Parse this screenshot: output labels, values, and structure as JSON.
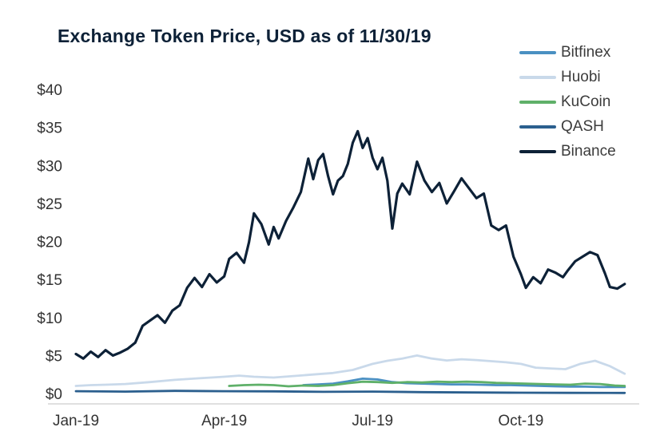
{
  "chart_data": {
    "type": "line",
    "title": "Exchange Token Price, USD as of 11/30/19",
    "xlabel": "",
    "ylabel": "",
    "ylim": [
      0,
      40
    ],
    "x_range": [
      0,
      11.2
    ],
    "grid": false,
    "legend_position": "top-right",
    "y_ticks": [
      {
        "value": 0,
        "label": "$0"
      },
      {
        "value": 5,
        "label": "$5"
      },
      {
        "value": 10,
        "label": "$10"
      },
      {
        "value": 15,
        "label": "$15"
      },
      {
        "value": 20,
        "label": "$20"
      },
      {
        "value": 25,
        "label": "$25"
      },
      {
        "value": 30,
        "label": "$30"
      },
      {
        "value": 35,
        "label": "$35"
      },
      {
        "value": 40,
        "label": "$40"
      }
    ],
    "x_ticks": [
      {
        "value": 0,
        "label": "Jan-19"
      },
      {
        "value": 3,
        "label": "Apr-19"
      },
      {
        "value": 6,
        "label": "Jul-19"
      },
      {
        "value": 9,
        "label": "Oct-19"
      }
    ],
    "series": [
      {
        "name": "Bitfinex",
        "color": "#4a90c2",
        "points": [
          [
            4.6,
            1.1
          ],
          [
            4.9,
            1.2
          ],
          [
            5.2,
            1.3
          ],
          [
            5.5,
            1.6
          ],
          [
            5.8,
            1.95
          ],
          [
            6.1,
            1.85
          ],
          [
            6.4,
            1.5
          ],
          [
            6.7,
            1.35
          ],
          [
            7.0,
            1.3
          ],
          [
            7.3,
            1.25
          ],
          [
            7.6,
            1.2
          ],
          [
            7.9,
            1.2
          ],
          [
            8.2,
            1.15
          ],
          [
            8.5,
            1.1
          ],
          [
            8.8,
            1.1
          ],
          [
            9.1,
            1.05
          ],
          [
            9.4,
            1.0
          ],
          [
            9.7,
            0.95
          ],
          [
            10.0,
            0.9
          ],
          [
            10.3,
            0.9
          ],
          [
            10.6,
            0.85
          ],
          [
            10.9,
            0.85
          ],
          [
            11.1,
            0.85
          ]
        ]
      },
      {
        "name": "Huobi",
        "color": "#c9d9ea",
        "points": [
          [
            0,
            1.0
          ],
          [
            0.3,
            1.1
          ],
          [
            0.6,
            1.15
          ],
          [
            1.0,
            1.25
          ],
          [
            1.5,
            1.5
          ],
          [
            2.0,
            1.8
          ],
          [
            2.5,
            2.0
          ],
          [
            3.0,
            2.2
          ],
          [
            3.3,
            2.35
          ],
          [
            3.6,
            2.2
          ],
          [
            4.0,
            2.1
          ],
          [
            4.4,
            2.3
          ],
          [
            4.8,
            2.5
          ],
          [
            5.2,
            2.7
          ],
          [
            5.6,
            3.1
          ],
          [
            6.0,
            3.9
          ],
          [
            6.3,
            4.3
          ],
          [
            6.6,
            4.6
          ],
          [
            6.9,
            5.0
          ],
          [
            7.2,
            4.6
          ],
          [
            7.5,
            4.35
          ],
          [
            7.8,
            4.5
          ],
          [
            8.1,
            4.4
          ],
          [
            8.4,
            4.25
          ],
          [
            8.7,
            4.1
          ],
          [
            9.0,
            3.9
          ],
          [
            9.3,
            3.4
          ],
          [
            9.6,
            3.3
          ],
          [
            9.9,
            3.2
          ],
          [
            10.2,
            3.9
          ],
          [
            10.5,
            4.3
          ],
          [
            10.8,
            3.6
          ],
          [
            11.1,
            2.6
          ]
        ]
      },
      {
        "name": "KuCoin",
        "color": "#5fb069",
        "points": [
          [
            3.1,
            1.0
          ],
          [
            3.4,
            1.1
          ],
          [
            3.7,
            1.15
          ],
          [
            4.0,
            1.1
          ],
          [
            4.3,
            0.95
          ],
          [
            4.6,
            1.05
          ],
          [
            4.9,
            1.0
          ],
          [
            5.2,
            1.1
          ],
          [
            5.5,
            1.35
          ],
          [
            5.8,
            1.55
          ],
          [
            6.1,
            1.5
          ],
          [
            6.4,
            1.4
          ],
          [
            6.7,
            1.5
          ],
          [
            7.0,
            1.45
          ],
          [
            7.3,
            1.55
          ],
          [
            7.6,
            1.5
          ],
          [
            7.9,
            1.55
          ],
          [
            8.2,
            1.5
          ],
          [
            8.5,
            1.4
          ],
          [
            8.8,
            1.35
          ],
          [
            9.1,
            1.3
          ],
          [
            9.4,
            1.25
          ],
          [
            9.7,
            1.2
          ],
          [
            10.0,
            1.15
          ],
          [
            10.3,
            1.3
          ],
          [
            10.6,
            1.25
          ],
          [
            10.9,
            1.05
          ],
          [
            11.1,
            1.0
          ]
        ]
      },
      {
        "name": "QASH",
        "color": "#2b5f8e",
        "points": [
          [
            0,
            0.3
          ],
          [
            1.0,
            0.25
          ],
          [
            2.0,
            0.35
          ],
          [
            3.0,
            0.3
          ],
          [
            4.0,
            0.28
          ],
          [
            5.0,
            0.22
          ],
          [
            6.0,
            0.25
          ],
          [
            7.0,
            0.18
          ],
          [
            8.0,
            0.14
          ],
          [
            9.0,
            0.1
          ],
          [
            10.0,
            0.08
          ],
          [
            11.1,
            0.07
          ]
        ]
      },
      {
        "name": "Binance",
        "color": "#0d2137",
        "points": [
          [
            0,
            5.2
          ],
          [
            0.15,
            4.6
          ],
          [
            0.3,
            5.5
          ],
          [
            0.45,
            4.8
          ],
          [
            0.6,
            5.7
          ],
          [
            0.75,
            5.0
          ],
          [
            0.9,
            5.4
          ],
          [
            1.05,
            5.9
          ],
          [
            1.2,
            6.7
          ],
          [
            1.35,
            8.9
          ],
          [
            1.5,
            9.6
          ],
          [
            1.65,
            10.3
          ],
          [
            1.8,
            9.3
          ],
          [
            1.95,
            10.9
          ],
          [
            2.1,
            11.6
          ],
          [
            2.25,
            13.9
          ],
          [
            2.4,
            15.2
          ],
          [
            2.55,
            14.0
          ],
          [
            2.7,
            15.7
          ],
          [
            2.85,
            14.6
          ],
          [
            3.0,
            15.4
          ],
          [
            3.1,
            17.7
          ],
          [
            3.25,
            18.5
          ],
          [
            3.4,
            17.2
          ],
          [
            3.5,
            19.9
          ],
          [
            3.6,
            23.7
          ],
          [
            3.75,
            22.3
          ],
          [
            3.9,
            19.6
          ],
          [
            4.0,
            21.9
          ],
          [
            4.1,
            20.4
          ],
          [
            4.25,
            22.7
          ],
          [
            4.4,
            24.5
          ],
          [
            4.55,
            26.5
          ],
          [
            4.7,
            30.9
          ],
          [
            4.8,
            28.2
          ],
          [
            4.9,
            30.7
          ],
          [
            5.0,
            31.5
          ],
          [
            5.1,
            28.6
          ],
          [
            5.2,
            26.2
          ],
          [
            5.3,
            28.0
          ],
          [
            5.4,
            28.6
          ],
          [
            5.5,
            30.2
          ],
          [
            5.6,
            33.0
          ],
          [
            5.7,
            34.5
          ],
          [
            5.8,
            32.3
          ],
          [
            5.9,
            33.6
          ],
          [
            6.0,
            31.0
          ],
          [
            6.1,
            29.5
          ],
          [
            6.2,
            31.0
          ],
          [
            6.3,
            28.0
          ],
          [
            6.4,
            21.7
          ],
          [
            6.5,
            26.3
          ],
          [
            6.6,
            27.6
          ],
          [
            6.75,
            26.2
          ],
          [
            6.9,
            30.5
          ],
          [
            7.05,
            28.0
          ],
          [
            7.2,
            26.5
          ],
          [
            7.35,
            27.7
          ],
          [
            7.5,
            25.0
          ],
          [
            7.65,
            26.6
          ],
          [
            7.8,
            28.3
          ],
          [
            7.95,
            27.0
          ],
          [
            8.1,
            25.7
          ],
          [
            8.25,
            26.3
          ],
          [
            8.4,
            22.1
          ],
          [
            8.55,
            21.5
          ],
          [
            8.7,
            22.1
          ],
          [
            8.85,
            18.0
          ],
          [
            9.0,
            15.7
          ],
          [
            9.1,
            13.9
          ],
          [
            9.25,
            15.3
          ],
          [
            9.4,
            14.5
          ],
          [
            9.55,
            16.3
          ],
          [
            9.7,
            15.9
          ],
          [
            9.85,
            15.3
          ],
          [
            9.95,
            16.2
          ],
          [
            10.1,
            17.4
          ],
          [
            10.25,
            18.0
          ],
          [
            10.4,
            18.6
          ],
          [
            10.55,
            18.2
          ],
          [
            10.7,
            15.8
          ],
          [
            10.8,
            14.0
          ],
          [
            10.95,
            13.8
          ],
          [
            11.1,
            14.4
          ]
        ]
      }
    ]
  }
}
